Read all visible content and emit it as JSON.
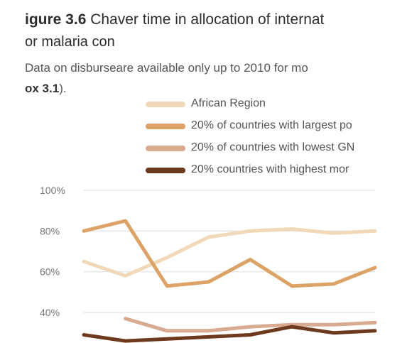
{
  "figure": {
    "number": "igure 3.6",
    "title_rest": " Chaver time in allocation of internat",
    "title_line2": "or malaria con",
    "note_line1": "Data on disburseare available only up to 2010 for mo",
    "note_line2_bold": "ox 3.1",
    "note_line2_end": ")."
  },
  "chart_data": {
    "type": "line",
    "title": "",
    "xlabel": "",
    "ylabel": "",
    "yticks": [
      "100%",
      "80%",
      "60%",
      "40%"
    ],
    "ylim": [
      30,
      100
    ],
    "grid": true,
    "legend_position": "top",
    "x": [
      1,
      2,
      3,
      4,
      5,
      6,
      7,
      8
    ],
    "series": [
      {
        "name": "African Region",
        "color": "#f0d8b8",
        "values": [
          65,
          58,
          67,
          77,
          80,
          81,
          79,
          80
        ]
      },
      {
        "name": "20% of countries with largest po",
        "color": "#dda266",
        "values": [
          80,
          85,
          53,
          55,
          66,
          53,
          54,
          62
        ]
      },
      {
        "name": "20% of countries with lowest GN",
        "color": "#d8aa90",
        "values": [
          null,
          37,
          31,
          31,
          33,
          34,
          34,
          35
        ]
      },
      {
        "name": "20% countries with highest mor",
        "color": "#6e3a1e",
        "values": [
          29,
          26,
          27,
          28,
          29,
          33,
          30,
          31
        ]
      }
    ]
  }
}
